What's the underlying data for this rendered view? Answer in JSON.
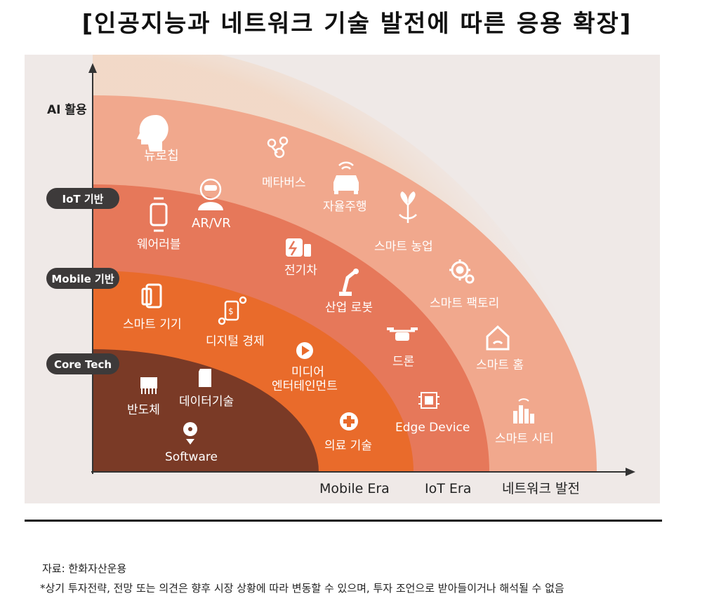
{
  "title": "[인공지능과 네트워크 기술 발전에 따른 응용 확장]",
  "colors": {
    "background": "#efe9e7",
    "ring_outer": "#f1a88d",
    "ring_iot": "#e6785a",
    "ring_mobile": "#e96b2b",
    "ring_core": "#7a3a26",
    "pill": "#3d3a3a",
    "text_dark": "#222222",
    "text_light": "#ffffff"
  },
  "axes": {
    "y_top_label": "AI 활용",
    "x_labels": [
      "Mobile Era",
      "IoT Era",
      "네트워크 발전"
    ]
  },
  "layers": [
    {
      "name": "IoT 기반"
    },
    {
      "name": "Mobile 기반"
    },
    {
      "name": "Core Tech"
    }
  ],
  "items": {
    "neurochip": "뉴로칩",
    "metaverse": "메타버스",
    "autonomous": "자율주행",
    "ar_vr": "AR/VR",
    "wearable": "웨어러블",
    "smart_farm": "스마트 농업",
    "ev": "전기차",
    "smart_factory": "스마트 팩토리",
    "smart_device": "스마트 기기",
    "robot": "산업 로봇",
    "digital_economy": "디지털 경제",
    "smart_home": "스마트 홈",
    "drone": "드론",
    "media_1": "미디어",
    "media_2": "엔터테인먼트",
    "semiconductor": "반도체",
    "data_tech": "데이터기술",
    "edge_device": "Edge Device",
    "software": "Software",
    "medical": "의료 기술",
    "smart_city": "스마트 시티"
  },
  "footer": {
    "source": "자료: 한화자산운용",
    "disclaimer": "*상기 투자전략, 전망 또는 의견은 향후 시장 상황에 따라 변동할 수 있으며, 투자 조언으로 받아들이거나 해석될 수 없음"
  }
}
